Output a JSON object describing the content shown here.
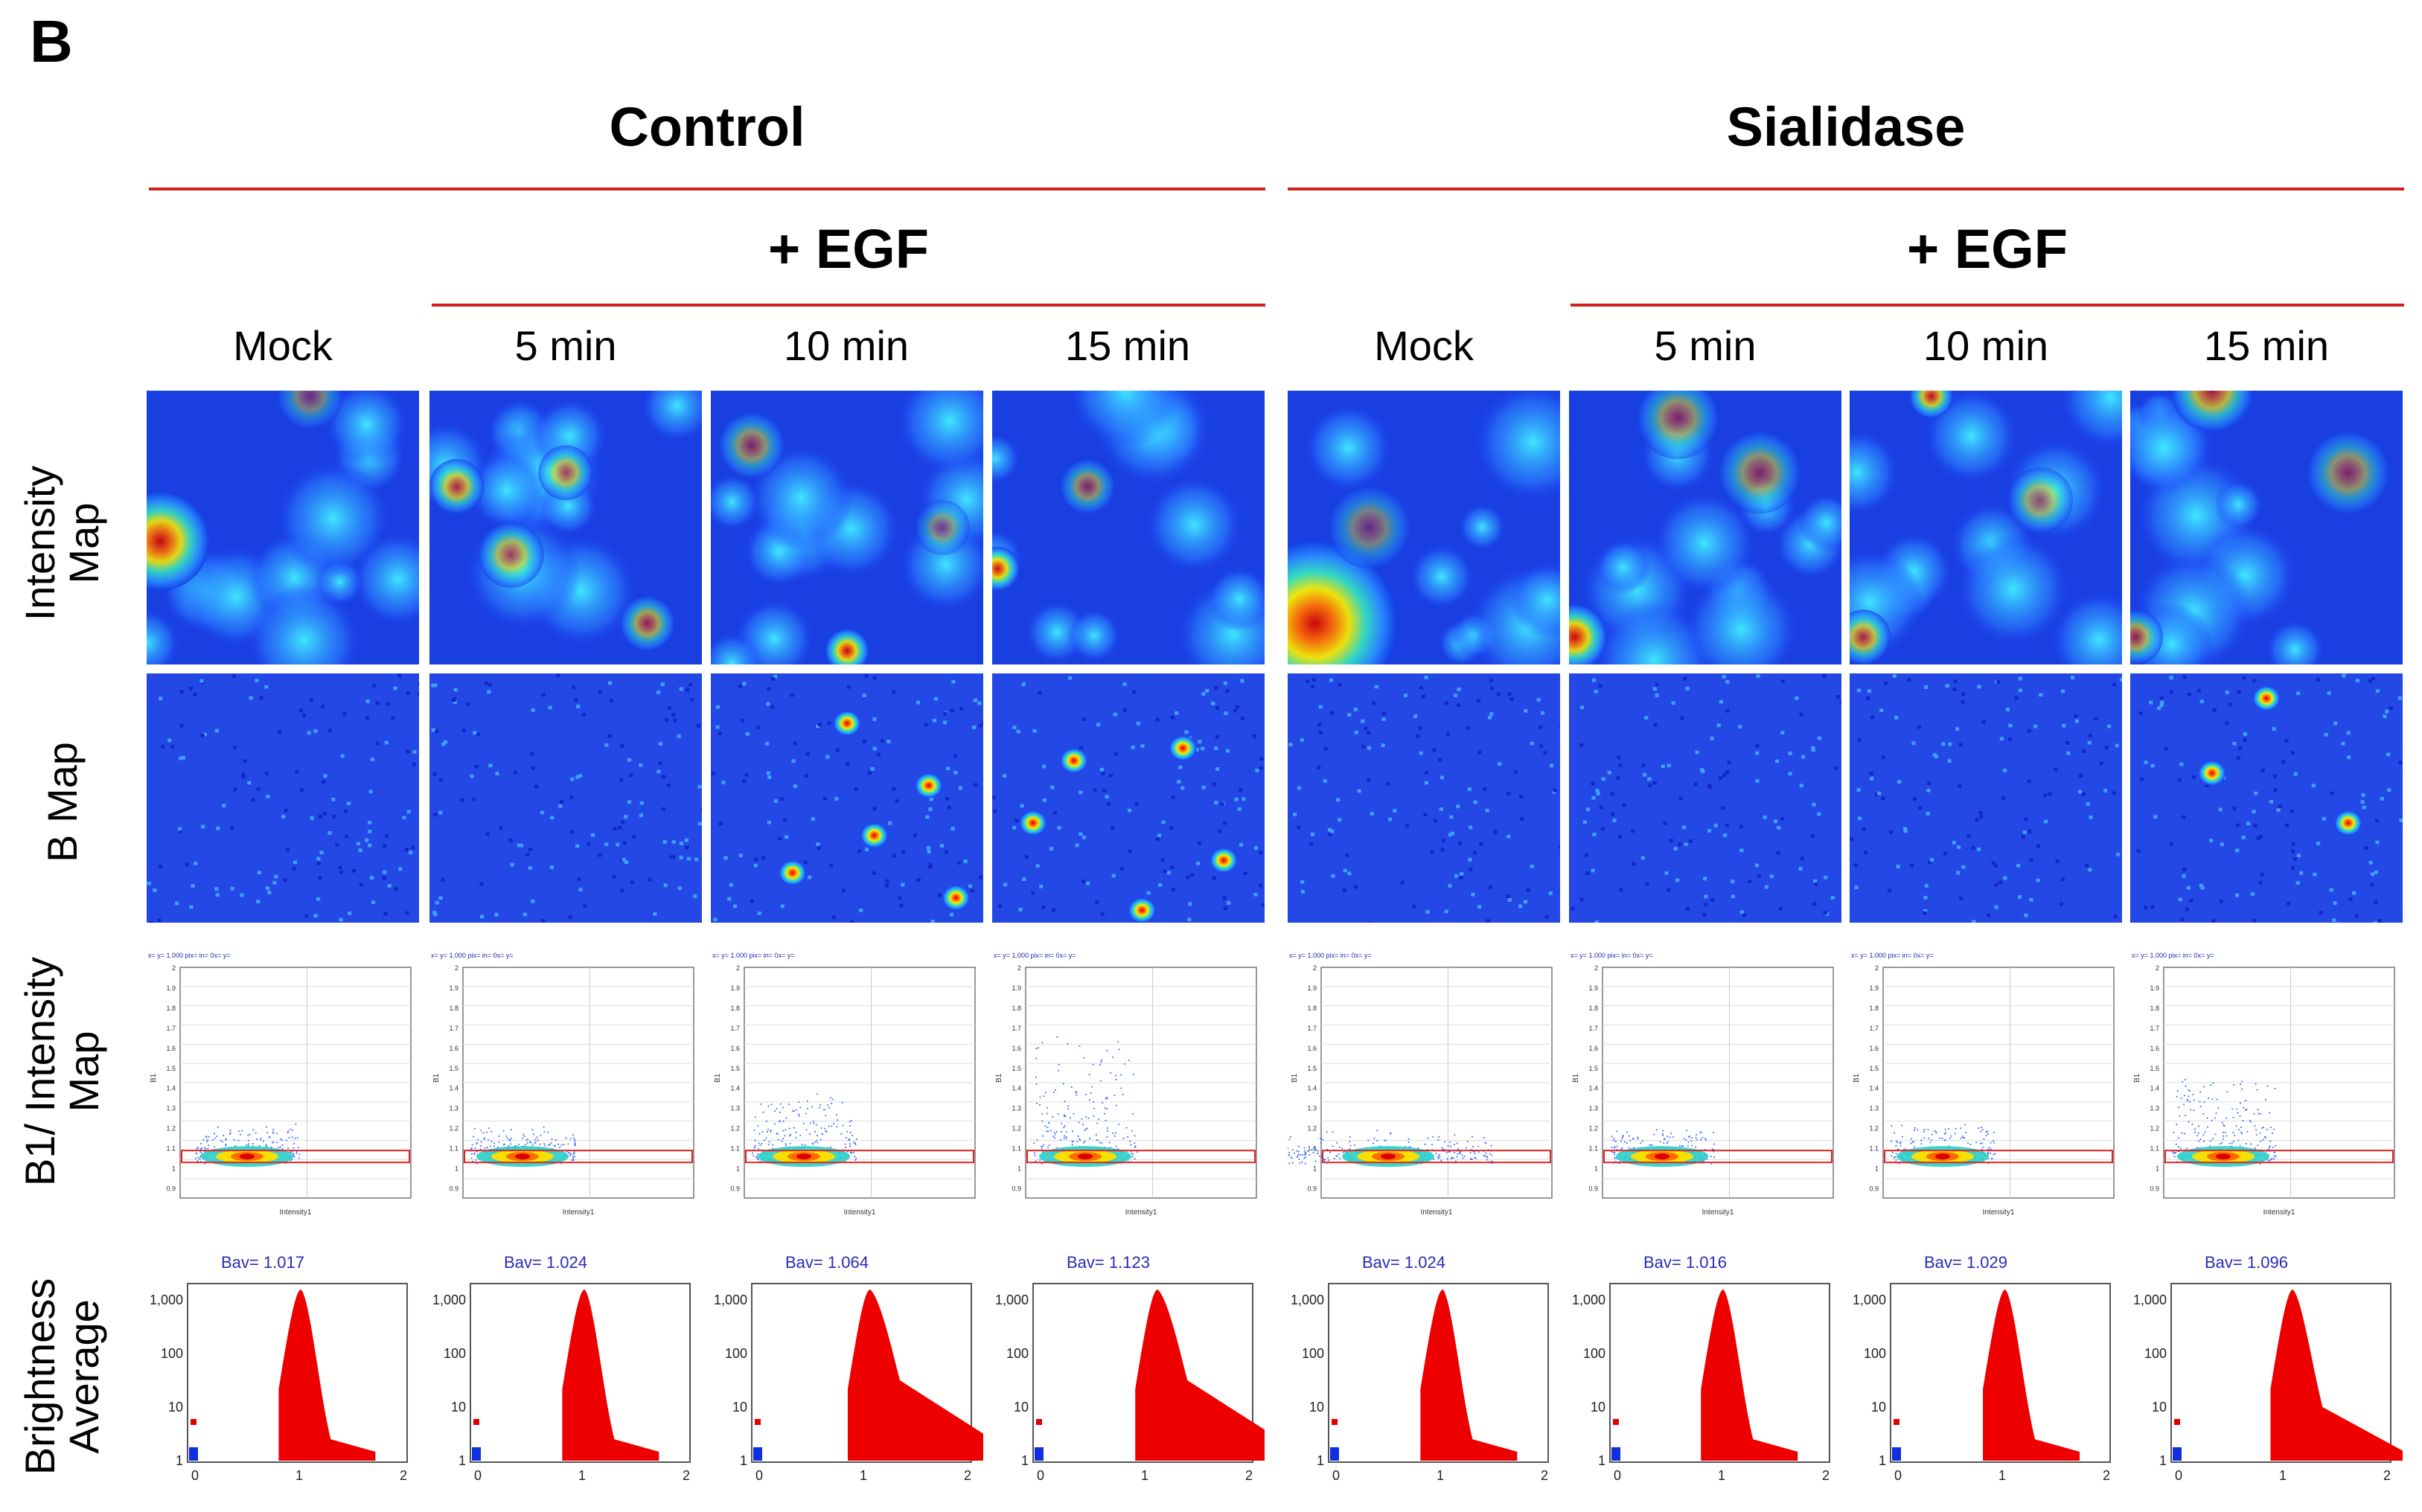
{
  "figure": {
    "panel_letter": "B",
    "groups": [
      {
        "title": "Control",
        "egf_label": "+ EGF"
      },
      {
        "title": "Sialidase",
        "egf_label": "+ EGF"
      }
    ],
    "conditions": [
      "Mock",
      "5 min",
      "10 min",
      "15 min"
    ],
    "row_labels": {
      "intensity_line1": "Intensity",
      "intensity_line2": "Map",
      "bmap": "B Map",
      "scatter_line1": "B1/ Intensity",
      "scatter_line2": "Map",
      "hist_line1": "Brightness",
      "hist_line2": "Average"
    },
    "scatter_axis": {
      "xlabel": "Intensity1",
      "ylabel": "B1",
      "yticks": [
        "2",
        "1.9",
        "1.8",
        "1.7",
        "1.6",
        "1.5",
        "1.4",
        "1.3",
        "1.2",
        "1.1",
        "1",
        "0.9"
      ]
    },
    "hist_axis": {
      "yticks": [
        "1,000",
        "100",
        "10",
        "1"
      ],
      "xticks": [
        "0",
        "1",
        "2"
      ]
    }
  },
  "chart_data": [
    {
      "type": "histogram",
      "group": "Control",
      "condition": "Mock",
      "label_prefix": "Bav=",
      "bav": "1.017",
      "tail": "short"
    },
    {
      "type": "histogram",
      "group": "Control",
      "condition": "5 min",
      "label_prefix": "Bav=",
      "bav": "1.024",
      "tail": "short"
    },
    {
      "type": "histogram",
      "group": "Control",
      "condition": "10 min",
      "label_prefix": "Bav=",
      "bav": "1.064",
      "tail": "long"
    },
    {
      "type": "histogram",
      "group": "Control",
      "condition": "15 min",
      "label_prefix": "Bav=",
      "bav": "1.123",
      "tail": "long"
    },
    {
      "type": "histogram",
      "group": "Sialidase",
      "condition": "Mock",
      "label_prefix": "Bav=",
      "bav": "1.024",
      "tail": "short"
    },
    {
      "type": "histogram",
      "group": "Sialidase",
      "condition": "5 min",
      "label_prefix": "Bav=",
      "bav": "1.016",
      "tail": "short"
    },
    {
      "type": "histogram",
      "group": "Sialidase",
      "condition": "10 min",
      "label_prefix": "Bav=",
      "bav": "1.029",
      "tail": "short"
    },
    {
      "type": "histogram",
      "group": "Sialidase",
      "condition": "15 min",
      "label_prefix": "Bav=",
      "bav": "1.096",
      "tail": "medium"
    }
  ],
  "colors": {
    "accent_line": "#d22020",
    "hist_fill": "#ee0000",
    "label_blue": "#2a2ab8"
  }
}
